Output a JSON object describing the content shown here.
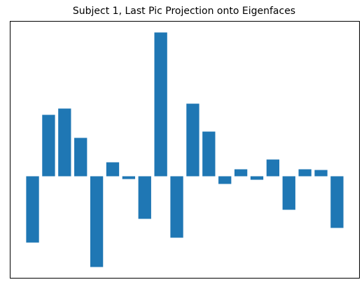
{
  "chart_data": {
    "type": "bar",
    "title": "Subject 1, Last Pic Projection onto Eigenfaces",
    "categories": [
      null,
      null,
      null,
      null,
      null,
      null,
      null,
      null,
      null,
      null,
      null,
      null,
      null,
      null,
      null,
      null,
      null,
      null,
      null,
      null
    ],
    "values": [
      -95,
      88,
      97,
      55,
      -130,
      20,
      -4,
      -61,
      206,
      -88,
      104,
      64,
      -11,
      10,
      -5,
      24,
      -48,
      10,
      9,
      -74
    ],
    "color": "#1f77b4",
    "ylim": [
      -146,
      222
    ]
  }
}
